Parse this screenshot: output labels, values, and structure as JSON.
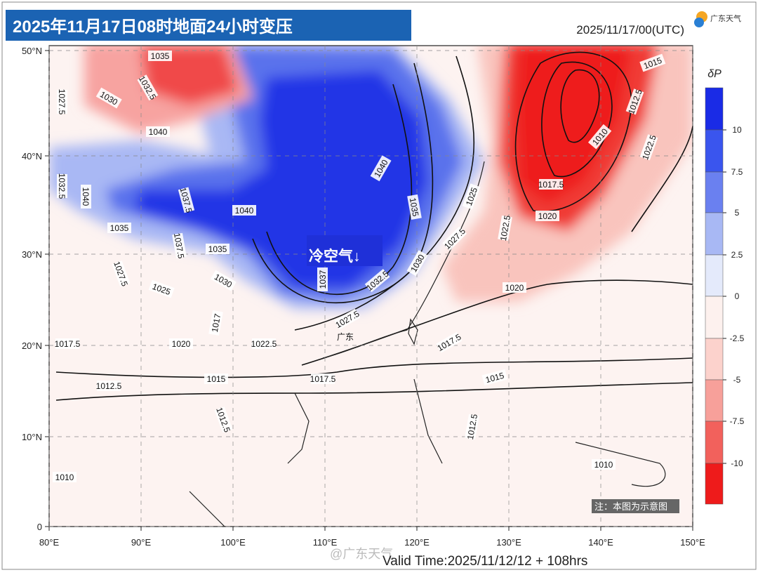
{
  "header": {
    "title": "2025年11月17日08时地面24小时变压",
    "init_time": "2025/11/17/00(UTC)",
    "logo": "广东天气"
  },
  "map": {
    "lat_labels": [
      "50°N",
      "40°N",
      "30°N",
      "20°N",
      "10°N",
      "0"
    ],
    "lon_labels": [
      "80°E",
      "90°E",
      "100°E",
      "110°E",
      "120°E",
      "130°E",
      "140°E",
      "150°E"
    ],
    "contour_labels": [
      "1035",
      "1032.5",
      "1030",
      "1027.5",
      "1040",
      "1032.5",
      "1040",
      "1037.5",
      "1040",
      "1035",
      "1037.5",
      "1035",
      "1027.5",
      "1025",
      "1030",
      "1037",
      "1032.5",
      "1030",
      "1035",
      "1040",
      "1025",
      "1027.5",
      "1022.5",
      "1020",
      "1017.5",
      "1010",
      "1012.5",
      "1015",
      "1022.5",
      "1020",
      "1027.5",
      "1017.5",
      "1015",
      "1017.5",
      "1015",
      "1012.5",
      "1017.5",
      "1020",
      "1022.5",
      "1017",
      "1012.5",
      "1012.5",
      "1010",
      "1010"
    ],
    "annotation": "冷空气↓",
    "place_label": "广东",
    "note": "注：本图为示意图"
  },
  "colorbar": {
    "label": "δP",
    "ticks": [
      "10",
      "7.5",
      "5",
      "2.5",
      "0",
      "-2.5",
      "-5",
      "-7.5",
      "-10"
    ]
  },
  "footer": {
    "valid_time": "Valid Time:2025/11/12/12 + 108hrs",
    "watermark": "@广东天气"
  }
}
